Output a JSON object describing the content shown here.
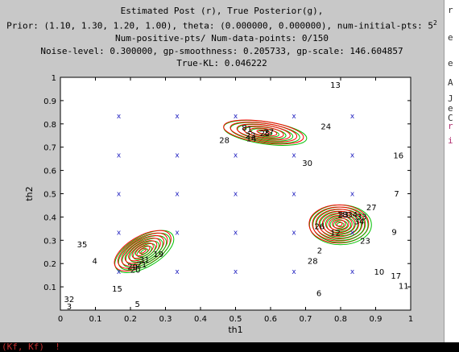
{
  "window": {
    "title_lines": [
      "Estimated Post (r), True Posterior(g),",
      "Prior: (1.10, 1.30, 1.20, 1.00), theta: (0.000000, 0.000000), num-initial-pts: 5",
      "Num-positive-pts/ Num-data-points: 0/150",
      "Noise-level: 0.300000, gp-smoothness: 0.205733, gp-scale: 146.604857",
      "True-KL: 0.046222"
    ],
    "title_superscript": "2"
  },
  "right_strip": {
    "chars": [
      "r",
      "e",
      "e",
      "A",
      "J",
      "e",
      "C",
      "r",
      "i"
    ]
  },
  "bottom_strip": {
    "text": "(Kf, Kf)  !"
  },
  "chart_data": {
    "type": "scatter",
    "title": "",
    "xlabel": "th1",
    "ylabel": "th2",
    "xlim": [
      0,
      1
    ],
    "ylim": [
      0,
      1
    ],
    "xticks": [
      0,
      0.1,
      0.2,
      0.3,
      0.4,
      0.5,
      0.6,
      0.7,
      0.8,
      0.9,
      1
    ],
    "yticks": [
      0.1,
      0.2,
      0.3,
      0.4,
      0.5,
      0.6,
      0.7,
      0.8,
      0.9,
      1
    ],
    "grid": false,
    "colors": {
      "estimated": "#ff0000",
      "true": "#00c000",
      "markers": "#2020c0",
      "labels": "#000000"
    },
    "grid_points": {
      "marker": "x",
      "x": [
        0.1667,
        0.3333,
        0.5,
        0.6667,
        0.8333
      ],
      "y": [
        0.1667,
        0.3333,
        0.5,
        0.6667,
        0.8333
      ]
    },
    "contour_clusters": [
      {
        "name": "lower-left",
        "center": [
          0.235,
          0.255
        ],
        "rx": 0.09,
        "ry": 0.063,
        "tilt_deg": 30,
        "levels": 8
      },
      {
        "name": "upper-middle",
        "center": [
          0.58,
          0.765
        ],
        "rx": 0.115,
        "ry": 0.046,
        "tilt_deg": -8,
        "levels": 6
      },
      {
        "name": "lower-right",
        "center": [
          0.795,
          0.37
        ],
        "rx": 0.085,
        "ry": 0.082,
        "tilt_deg": 0,
        "levels": 9
      }
    ],
    "point_labels": [
      {
        "label": "1",
        "x": 0.54,
        "y": 0.779
      },
      {
        "label": "2",
        "x": 0.74,
        "y": 0.258
      },
      {
        "label": "3",
        "x": 0.025,
        "y": 0.018
      },
      {
        "label": "4",
        "x": 0.098,
        "y": 0.212
      },
      {
        "label": "5",
        "x": 0.22,
        "y": 0.028
      },
      {
        "label": "6",
        "x": 0.738,
        "y": 0.075
      },
      {
        "label": "7",
        "x": 0.96,
        "y": 0.502
      },
      {
        "label": "8",
        "x": 0.525,
        "y": 0.786
      },
      {
        "label": "9",
        "x": 0.953,
        "y": 0.337
      },
      {
        "label": "10",
        "x": 0.91,
        "y": 0.166
      },
      {
        "label": "11",
        "x": 0.98,
        "y": 0.105
      },
      {
        "label": "12",
        "x": 0.785,
        "y": 0.334
      },
      {
        "label": "13",
        "x": 0.785,
        "y": 0.968
      },
      {
        "label": "14",
        "x": 0.545,
        "y": 0.739
      },
      {
        "label": "15",
        "x": 0.162,
        "y": 0.094
      },
      {
        "label": "16",
        "x": 0.965,
        "y": 0.666
      },
      {
        "label": "17",
        "x": 0.958,
        "y": 0.149
      },
      {
        "label": "18",
        "x": 0.805,
        "y": 0.411
      },
      {
        "label": "19",
        "x": 0.28,
        "y": 0.242
      },
      {
        "label": "20",
        "x": 0.214,
        "y": 0.174
      },
      {
        "label": "21",
        "x": 0.232,
        "y": 0.197
      },
      {
        "label": "22",
        "x": 0.543,
        "y": 0.753
      },
      {
        "label": "23",
        "x": 0.87,
        "y": 0.299
      },
      {
        "label": "24",
        "x": 0.758,
        "y": 0.791
      },
      {
        "label": "25",
        "x": 0.584,
        "y": 0.761
      },
      {
        "label": "26",
        "x": 0.74,
        "y": 0.361
      },
      {
        "label": "27",
        "x": 0.595,
        "y": 0.767
      },
      {
        "label": "28",
        "x": 0.468,
        "y": 0.731
      },
      {
        "label": "29",
        "x": 0.206,
        "y": 0.188
      },
      {
        "label": "30",
        "x": 0.705,
        "y": 0.633
      },
      {
        "label": "31",
        "x": 0.24,
        "y": 0.218
      },
      {
        "label": "32",
        "x": 0.025,
        "y": 0.048
      },
      {
        "label": "33",
        "x": 0.86,
        "y": 0.403
      },
      {
        "label": "34",
        "x": 0.853,
        "y": 0.383
      },
      {
        "label": "35",
        "x": 0.062,
        "y": 0.283
      }
    ],
    "extra_labels": [
      {
        "label": "28",
        "x": 0.72,
        "y": 0.212
      },
      {
        "label": "27",
        "x": 0.888,
        "y": 0.443
      },
      {
        "label": "33",
        "x": 0.808,
        "y": 0.411
      },
      {
        "label": "34",
        "x": 0.834,
        "y": 0.411
      }
    ]
  }
}
